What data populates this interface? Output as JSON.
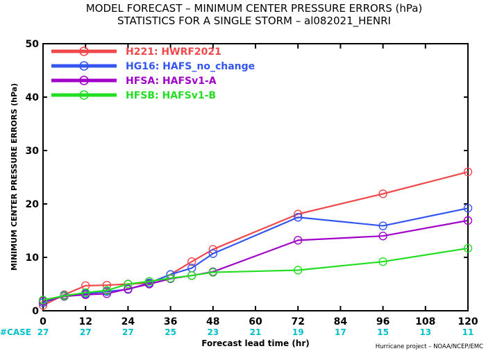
{
  "chart_data": {
    "type": "line",
    "title": "MODEL FORECAST – MINIMUM CENTER PRESSURE ERRORS (hPa)",
    "subtitle": "STATISTICS FOR A SINGLE STORM – al082021_HENRI",
    "xlabel": "Forecast lead time (hr)",
    "ylabel": "MINIMUM CENTER PRESSURE ERRORS (hPa)",
    "xlim": [
      0,
      120
    ],
    "ylim": [
      0,
      50
    ],
    "x_ticks": [
      "0",
      "12",
      "24",
      "36",
      "48",
      "60",
      "72",
      "84",
      "96",
      "108",
      "120"
    ],
    "y_ticks": [
      "0",
      "10",
      "20",
      "30",
      "40",
      "50"
    ],
    "case_label": "#CASE",
    "case_counts": [
      "27",
      "27",
      "27",
      "25",
      "23",
      "21",
      "19",
      "17",
      "15",
      "13",
      "11"
    ],
    "credit": "Hurricane project – NOAA/NCEP/EMC",
    "legend_position": "top-left",
    "series": [
      {
        "name": "H221: HWRF2021",
        "color": "#f0484a",
        "x": [
          0,
          6,
          12,
          18,
          24,
          30,
          36,
          42,
          48,
          72,
          96,
          120
        ],
        "values": [
          1.0,
          3.0,
          4.7,
          4.8,
          5.0,
          5.2,
          6.8,
          9.2,
          11.5,
          18.1,
          21.9,
          26.0
        ]
      },
      {
        "name": "HG16: HAFS_no_change",
        "color": "#3355f0",
        "x": [
          0,
          6,
          12,
          18,
          24,
          30,
          36,
          42,
          48,
          72,
          96,
          120
        ],
        "values": [
          1.5,
          2.9,
          3.2,
          3.6,
          4.0,
          5.2,
          6.8,
          8.0,
          10.7,
          17.5,
          15.9,
          19.2
        ]
      },
      {
        "name": "HFSA: HAFSv1-A",
        "color": "#a000c8",
        "x": [
          0,
          6,
          12,
          18,
          24,
          30,
          36,
          42,
          48,
          72,
          96,
          120
        ],
        "values": [
          1.8,
          2.7,
          3.0,
          3.2,
          4.1,
          5.0,
          6.0,
          6.6,
          7.3,
          13.2,
          14.0,
          16.9
        ]
      },
      {
        "name": "HFSB: HAFSv1-B",
        "color": "#22dd22",
        "x": [
          0,
          6,
          12,
          18,
          24,
          30,
          36,
          42,
          48,
          72,
          96,
          120
        ],
        "values": [
          2.0,
          2.8,
          3.4,
          3.8,
          5.0,
          5.5,
          6.1,
          6.6,
          7.2,
          7.6,
          9.2,
          11.7
        ]
      }
    ],
    "colors": {
      "case": "#00c0c8",
      "case_label": "#00c0c8"
    }
  }
}
